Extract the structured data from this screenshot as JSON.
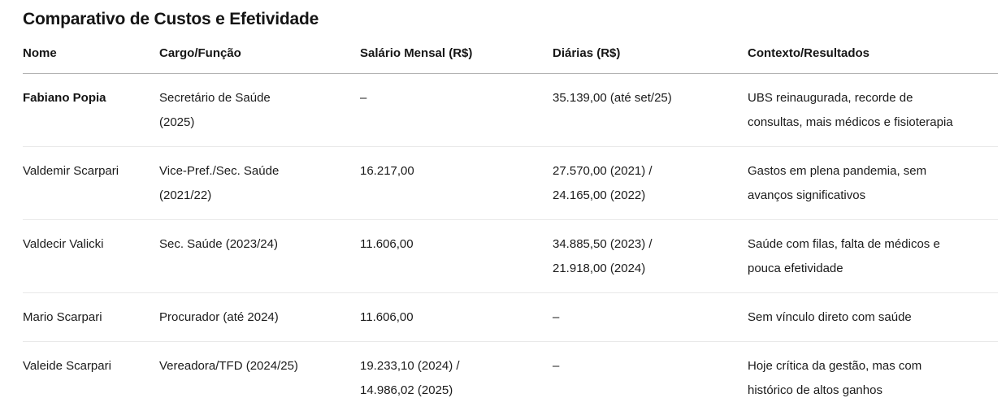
{
  "title": "Comparativo de Custos e Efetividade",
  "table": {
    "columns": [
      "Nome",
      "Cargo/Função",
      "Salário Mensal (R$)",
      "Diárias (R$)",
      "Contexto/Resultados"
    ],
    "rows": [
      {
        "nome": "Fabiano Popia",
        "cargo": "Secretário de Saúde (2025)",
        "salario": "–",
        "diarias": "35.139,00 (até set/25)",
        "contexto": "UBS reinaugurada, recorde de consultas, mais médicos e fisioterapia"
      },
      {
        "nome": "Valdemir Scarpari",
        "cargo": "Vice-Pref./Sec. Saúde (2021/22)",
        "salario": "16.217,00",
        "diarias": "27.570,00 (2021) / 24.165,00 (2022)",
        "contexto": "Gastos em plena pandemia, sem avanços significativos"
      },
      {
        "nome": "Valdecir Valicki",
        "cargo": "Sec. Saúde (2023/24)",
        "salario": "11.606,00",
        "diarias": "34.885,50 (2023) / 21.918,00 (2024)",
        "contexto": "Saúde com filas, falta de médicos e pouca efetividade"
      },
      {
        "nome": "Mario Scarpari",
        "cargo": "Procurador (até 2024)",
        "salario": "11.606,00",
        "diarias": "–",
        "contexto": "Sem vínculo direto com saúde"
      },
      {
        "nome": "Valeide Scarpari",
        "cargo": "Vereadora/TFD (2024/25)",
        "salario": "19.233,10 (2024) / 14.986,02 (2025)",
        "diarias": "–",
        "contexto": "Hoje crítica da gestão, mas com histórico de altos ganhos"
      }
    ]
  }
}
